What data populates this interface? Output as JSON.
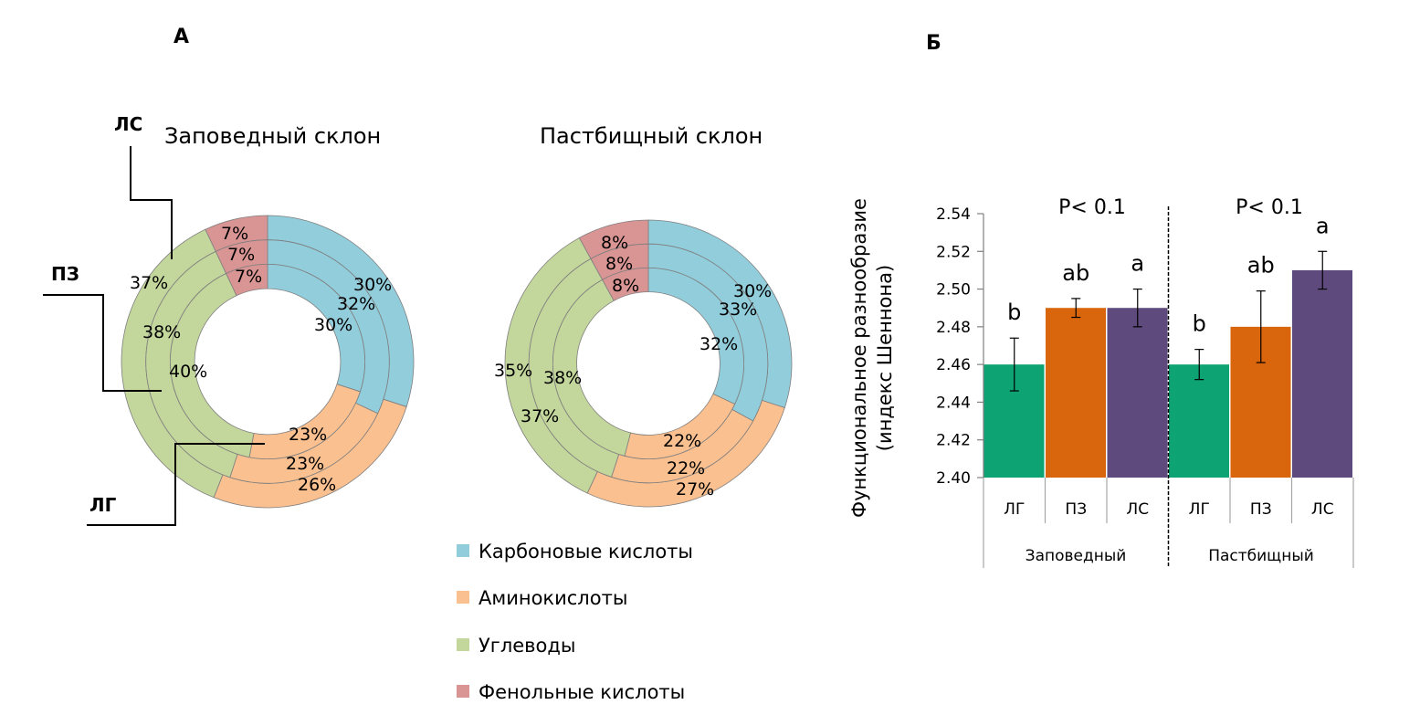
{
  "panels": {
    "a_label": "А",
    "b_label": "Б"
  },
  "colors": {
    "carboxylic": "#92CDDC",
    "amino": "#FAC090",
    "carbohydrates": "#C3D69B",
    "phenolic": "#D99594",
    "bar_lg": "#0EA373",
    "bar_pz": "#D9650C",
    "bar_ls": "#5E4A7C"
  },
  "chart_data": [
    {
      "type": "pie",
      "subtype": "multi-ring donut",
      "title": "Заповедный склон",
      "categories": [
        "Карбоновые кислоты",
        "Аминокислоты",
        "Углеводы",
        "Фенольные кислоты"
      ],
      "rings_outer_to_inner": [
        "ЛС",
        "ПЗ",
        "ЛГ"
      ],
      "series": [
        {
          "name": "ЛС",
          "values": [
            30,
            26,
            37,
            7
          ]
        },
        {
          "name": "ПЗ",
          "values": [
            32,
            23,
            38,
            7
          ]
        },
        {
          "name": "ЛГ",
          "values": [
            30,
            23,
            40,
            7
          ]
        }
      ],
      "value_format": "percent"
    },
    {
      "type": "pie",
      "subtype": "multi-ring donut",
      "title": "Пастбищный склон",
      "categories": [
        "Карбоновые кислоты",
        "Аминокислоты",
        "Углеводы",
        "Фенольные кислоты"
      ],
      "rings_outer_to_inner": [
        "ЛС",
        "ПЗ",
        "ЛГ"
      ],
      "series": [
        {
          "name": "ЛС",
          "values": [
            30,
            27,
            35,
            8
          ]
        },
        {
          "name": "ПЗ",
          "values": [
            33,
            22,
            37,
            8
          ]
        },
        {
          "name": "ЛГ",
          "values": [
            32,
            22,
            38,
            8
          ]
        }
      ],
      "value_format": "percent"
    },
    {
      "type": "bar",
      "title": "",
      "ylabel": "Функциональное разнообразие (индекс Шеннона)",
      "ylabel_lines": [
        "Функциональное разнообразие",
        "(индекс Шеннона)"
      ],
      "xlabel": "",
      "ylim": [
        2.4,
        2.54
      ],
      "yticks": [
        "2.40",
        "2.42",
        "2.44",
        "2.46",
        "2.48",
        "2.50",
        "2.52",
        "2.54"
      ],
      "groups": [
        {
          "name": "Заповедный",
          "p_value": "P< 0.1",
          "bars": [
            {
              "category": "ЛГ",
              "value": 2.46,
              "error": 0.014,
              "letter": "b"
            },
            {
              "category": "ПЗ",
              "value": 2.49,
              "error": 0.005,
              "letter": "ab"
            },
            {
              "category": "ЛС",
              "value": 2.49,
              "error": 0.01,
              "letter": "a"
            }
          ]
        },
        {
          "name": "Пастбищный",
          "p_value": "P< 0.1",
          "bars": [
            {
              "category": "ЛГ",
              "value": 2.46,
              "error": 0.008,
              "letter": "b"
            },
            {
              "category": "ПЗ",
              "value": 2.48,
              "error": 0.019,
              "letter": "ab"
            },
            {
              "category": "ЛС",
              "value": 2.51,
              "error": 0.01,
              "letter": "a"
            }
          ]
        }
      ],
      "grid": false,
      "legend": "none"
    }
  ],
  "ring_labels": {
    "outer": "ЛС",
    "middle": "ПЗ",
    "inner": "ЛГ"
  },
  "legend": {
    "placement": "bottom-center",
    "items": [
      {
        "label": "Карбоновые кислоты",
        "color_key": "carboxylic"
      },
      {
        "label": "Аминокислоты",
        "color_key": "amino"
      },
      {
        "label": "Углеводы",
        "color_key": "carbohydrates"
      },
      {
        "label": "Фенольные кислоты",
        "color_key": "phenolic"
      }
    ]
  }
}
